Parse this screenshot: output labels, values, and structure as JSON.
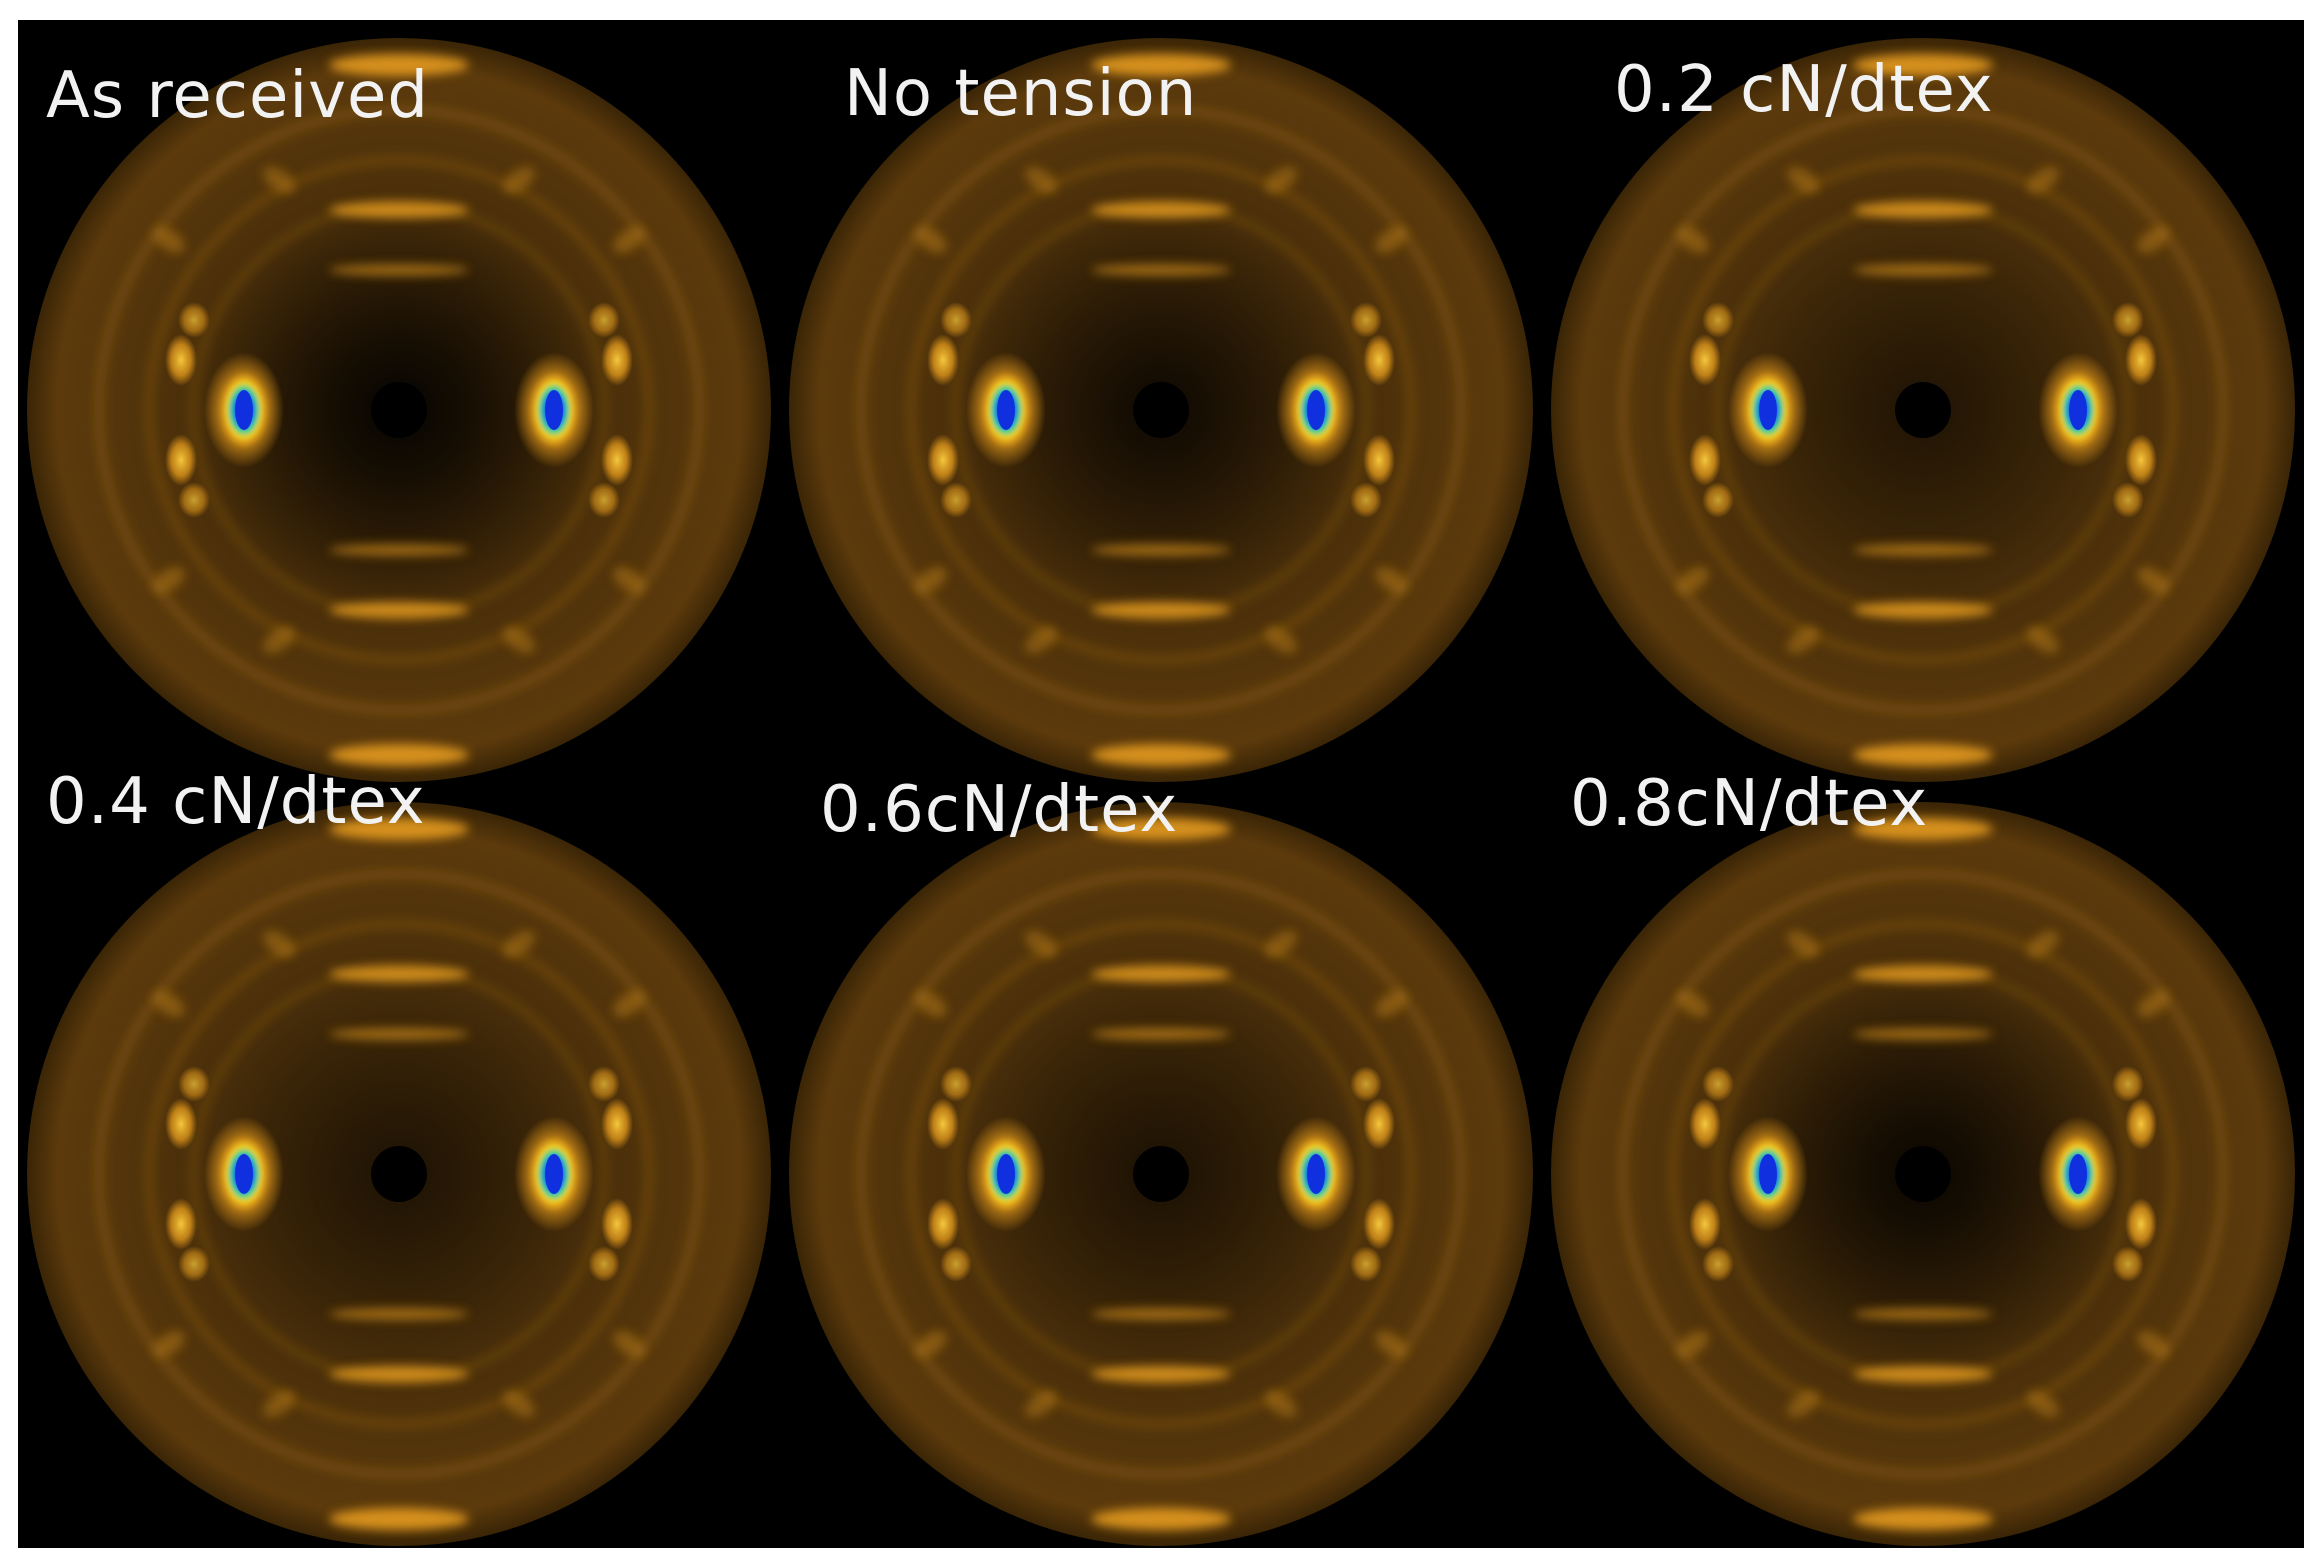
{
  "figure": {
    "background_color": "#000000",
    "panels": [
      {
        "label": "As received"
      },
      {
        "label": "No tension"
      },
      {
        "label": "0.2 cN/dtex"
      },
      {
        "label": "0.4 cN/dtex"
      },
      {
        "label": "0.6cN/dtex"
      },
      {
        "label": "0.8cN/dtex"
      }
    ]
  },
  "colors": {
    "ring_glow": "#e39a1c",
    "halo": "#5c3a0c",
    "spot_center": "#1030e0",
    "spot_mid": "#20d0a0"
  }
}
